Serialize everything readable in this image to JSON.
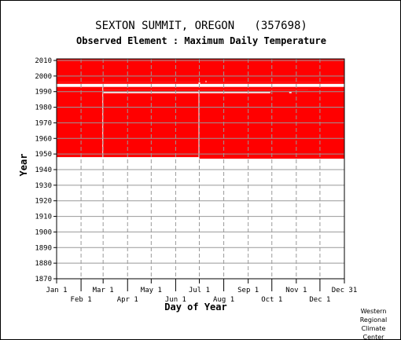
{
  "header": {
    "station_title": "SEXTON SUMMIT, OREGON   (357698)",
    "element_subtitle": "Observed Element : Maximum Daily Temperature"
  },
  "credit": {
    "lines": [
      "Western",
      "Regional",
      "Climate",
      "Center"
    ]
  },
  "colors": {
    "data": "#ff0000",
    "gridline": "#999999",
    "frame": "#000000",
    "background": "#ffffff"
  },
  "chart_data": {
    "type": "heatmap",
    "title": "SEXTON SUMMIT, OREGON   (357698)",
    "subtitle": "Observed Element : Maximum Daily Temperature",
    "xlabel": "Day of Year",
    "ylabel": "Year",
    "xlim": [
      1,
      366
    ],
    "ylim": [
      1870,
      2011
    ],
    "grid": true,
    "x_ticks_top_row": [
      {
        "label": "Jan 1",
        "day": 1
      },
      {
        "label": "Mar 1",
        "day": 60
      },
      {
        "label": "May 1",
        "day": 121
      },
      {
        "label": "Jul 1",
        "day": 182
      },
      {
        "label": "Sep 1",
        "day": 244
      },
      {
        "label": "Nov 1",
        "day": 305
      },
      {
        "label": "Dec 31",
        "day": 366
      }
    ],
    "x_ticks_bottom_row": [
      {
        "label": "Feb 1",
        "day": 32
      },
      {
        "label": "Apr 1",
        "day": 91
      },
      {
        "label": "Jun 1",
        "day": 152
      },
      {
        "label": "Aug 1",
        "day": 213
      },
      {
        "label": "Oct 1",
        "day": 274
      },
      {
        "label": "Dec 1",
        "day": 335
      }
    ],
    "y_ticks": [
      1870,
      1880,
      1890,
      1900,
      1910,
      1920,
      1930,
      1940,
      1950,
      1960,
      1970,
      1980,
      1990,
      2000,
      2010
    ],
    "series": [
      {
        "records_present": [
          {
            "day_start": 1,
            "day_end": 366,
            "year_start": 1996,
            "year_end": 2011
          },
          {
            "day_start": 1,
            "day_end": 181,
            "year_start": 1995,
            "year_end": 1996
          },
          {
            "day_start": 183,
            "day_end": 366,
            "year_start": 1995,
            "year_end": 1996
          },
          {
            "day_start": 1,
            "day_end": 59,
            "year_start": 1948,
            "year_end": 1993
          },
          {
            "day_start": 60,
            "day_end": 181,
            "year_start": 1948,
            "year_end": 1991
          },
          {
            "day_start": 182,
            "day_end": 366,
            "year_start": 1947,
            "year_end": 1991
          },
          {
            "day_start": 60,
            "day_end": 366,
            "year_start": 1991,
            "year_end": 1993
          },
          {
            "day_start": 320,
            "day_end": 366,
            "year_start": 1990,
            "year_end": 1991
          }
        ],
        "records_missing": [
          {
            "day_start": 60,
            "day_end": 272,
            "year_start": 1989,
            "year_end": 1990
          },
          {
            "day_start": 296,
            "day_end": 299,
            "year_start": 1989,
            "year_end": 1990
          },
          {
            "day_start": 190,
            "day_end": 191,
            "year_start": 1996,
            "year_end": 1997
          }
        ]
      }
    ]
  }
}
